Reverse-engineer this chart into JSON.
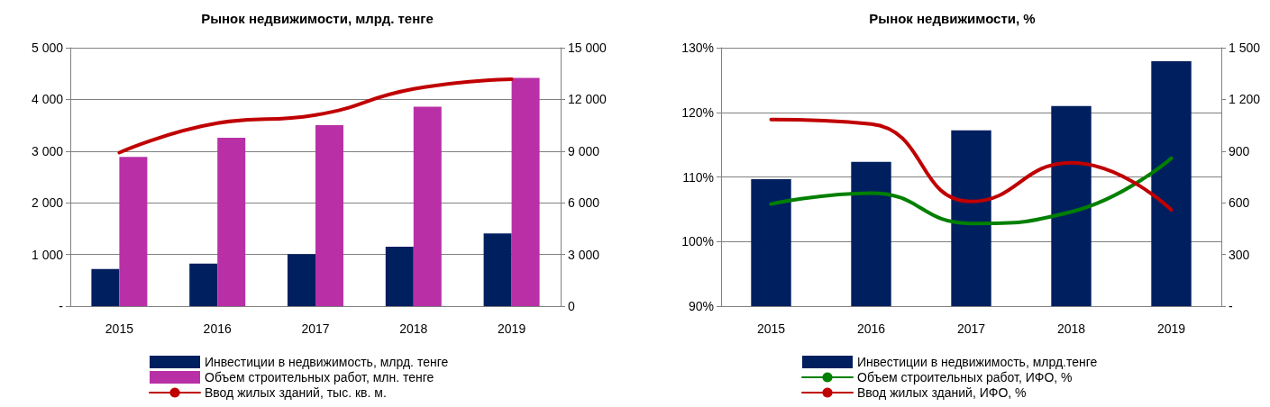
{
  "chart_data": [
    {
      "type": "bar",
      "title": "Рынок недвижимости, млрд. тенге",
      "categories": [
        "2015",
        "2016",
        "2017",
        "2018",
        "2019"
      ],
      "series": [
        {
          "name": "Инвестиции в недвижимость, млрд. тенге",
          "color": "#001f5f",
          "values": [
            720,
            824,
            1005,
            1148,
            1407
          ]
        },
        {
          "name": "Объем строительных работ, млн. тенге",
          "color": "#b930a6",
          "values": [
            2886,
            3256,
            3502,
            3859,
            4416
          ]
        },
        {
          "name": "Ввод жилых зданий, тыс. кв. м.",
          "type": "line",
          "axis": "y2",
          "color": "#c00000",
          "values": [
            8911,
            10623,
            11090,
            12607,
            13171
          ]
        }
      ],
      "ylim": [
        0,
        5000
      ],
      "yticks": [
        {
          "value": 0,
          "label": "-"
        },
        {
          "value": 1000,
          "label": "1 000"
        },
        {
          "value": 2000,
          "label": "2 000"
        },
        {
          "value": 3000,
          "label": "3 000"
        },
        {
          "value": 4000,
          "label": "4 000"
        },
        {
          "value": 5000,
          "label": "5 000"
        }
      ],
      "y2lim": [
        0,
        15000
      ],
      "y2ticks": [
        0,
        {
          "value": 3000,
          "label": "3 000"
        },
        {
          "value": 6000,
          "label": "6 000"
        },
        {
          "value": 9000,
          "label": "9 000"
        },
        {
          "value": 12000,
          "label": "12 000"
        },
        {
          "value": 15000,
          "label": "15 000"
        }
      ],
      "grid": "y",
      "legend": "bottom",
      "marker": "none"
    },
    {
      "type": "bar",
      "title": "Рынок недвижимости, %",
      "categories": [
        "2015",
        "2016",
        "2017",
        "2018",
        "2019"
      ],
      "series": [
        {
          "name": "Инвестиции в недвижимость, млрд.тенге",
          "color": "#001f5f",
          "axis": "y2",
          "values": [
            737,
            838,
            1021,
            1162,
            1421
          ]
        },
        {
          "name": "Объем строительных работ, ИФО, %",
          "type": "line",
          "color": "#008000",
          "values": [
            105.8,
            107.5,
            102.8,
            104.6,
            112.9
          ]
        },
        {
          "name": "Ввод жилых зданий, ИФО, %",
          "type": "line",
          "color": "#c00000",
          "values": [
            118.9,
            118.2,
            106.2,
            112.2,
            104.9
          ]
        }
      ],
      "ylim": [
        90,
        130
      ],
      "yticks": [
        {
          "value": 90,
          "label": "90%"
        },
        {
          "value": 100,
          "label": "100%"
        },
        {
          "value": 110,
          "label": "110%"
        },
        {
          "value": 120,
          "label": "120%"
        },
        {
          "value": 130,
          "label": "130%"
        }
      ],
      "y2lim": [
        0,
        1500
      ],
      "y2ticks": [
        {
          "value": 0,
          "label": "-"
        },
        300,
        600,
        900,
        {
          "value": 1200,
          "label": "1 200"
        },
        {
          "value": 1500,
          "label": "1 500"
        }
      ],
      "grid": "y",
      "legend": "bottom",
      "marker": "none"
    }
  ]
}
